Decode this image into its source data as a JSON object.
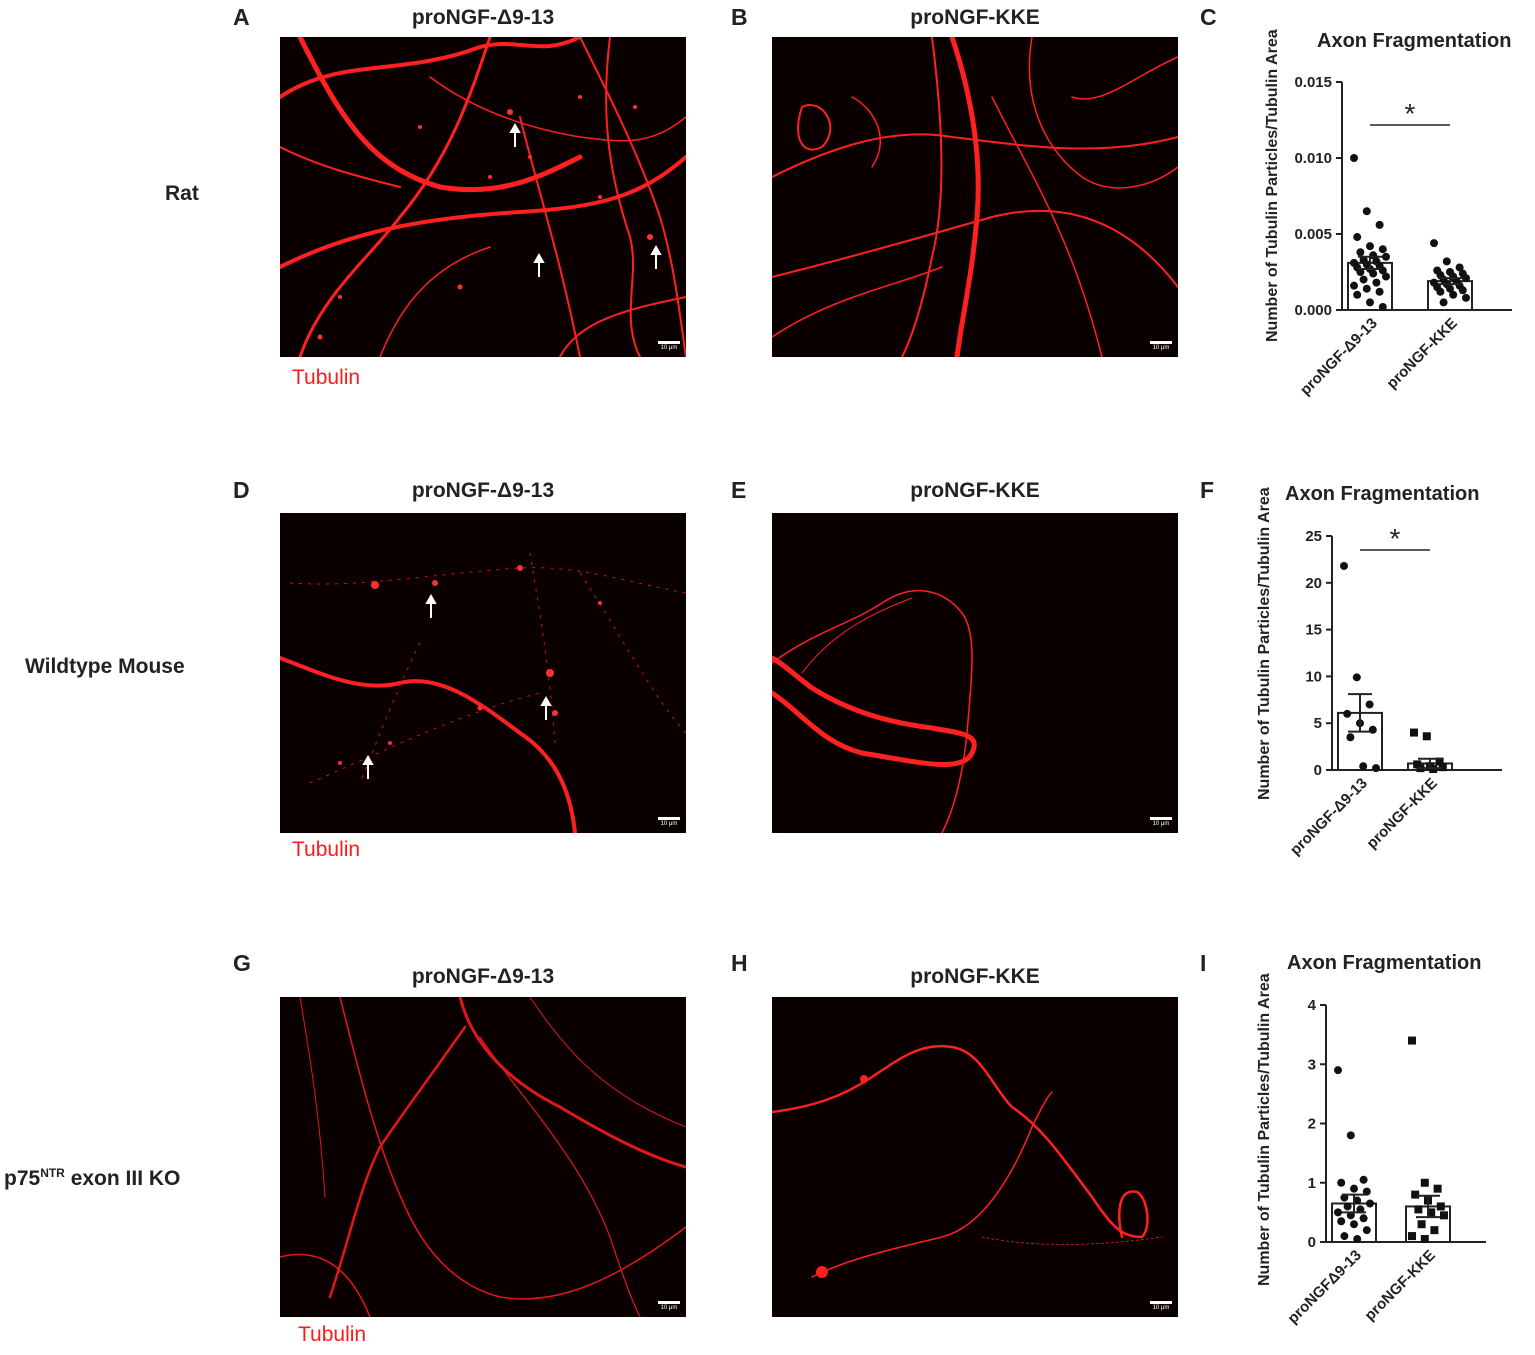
{
  "panels": {
    "A": {
      "letter": "A",
      "title": "proNGF-Δ9-13",
      "scale": "10 μm"
    },
    "B": {
      "letter": "B",
      "title": "proNGF-KKE",
      "scale": "10 μm"
    },
    "C": {
      "letter": "C"
    },
    "D": {
      "letter": "D",
      "title": "proNGF-Δ9-13",
      "scale": "10 μm"
    },
    "E": {
      "letter": "E",
      "title": "proNGF-KKE",
      "scale": "10 μm"
    },
    "F": {
      "letter": "F"
    },
    "G": {
      "letter": "G",
      "title": "proNGF-Δ9-13",
      "scale": "10 μm"
    },
    "H": {
      "letter": "H",
      "title": "proNGF-KKE",
      "scale": "10 μm"
    },
    "I": {
      "letter": "I"
    }
  },
  "rows": {
    "rat": "Rat",
    "wt": "Wildtype Mouse",
    "ko_prefix": "p75",
    "ko_sup": "NTR",
    "ko_suffix": " exon III KO"
  },
  "stain_label": "Tubulin",
  "colors": {
    "stain": "#ff1a1a",
    "background": "#0a0000"
  },
  "chart_data": [
    {
      "type": "bar",
      "panel": "C",
      "title": "Axon Fragmentation",
      "ylabel": "Number of Tubulin Particles/Tubulin Area",
      "categories": [
        "proNGF-Δ9-13",
        "proNGF-KKE"
      ],
      "values": [
        0.0031,
        0.0019
      ],
      "errors": [
        0.0004,
        0.0002
      ],
      "ylim": [
        0,
        0.015
      ],
      "yticks": [
        "0.000",
        "0.005",
        "0.010",
        "0.015"
      ],
      "significance": "*",
      "points": [
        [
          0.01,
          0.0065,
          0.0056,
          0.0048,
          0.0042,
          0.004,
          0.0038,
          0.0036,
          0.0035,
          0.0033,
          0.0032,
          0.0031,
          0.003,
          0.0029,
          0.0028,
          0.0027,
          0.0026,
          0.0025,
          0.0024,
          0.0022,
          0.002,
          0.0018,
          0.0016,
          0.0014,
          0.0012,
          0.001,
          0.0005,
          0.0002
        ],
        [
          0.0044,
          0.0032,
          0.0028,
          0.0026,
          0.0025,
          0.0024,
          0.0023,
          0.0022,
          0.0021,
          0.002,
          0.0019,
          0.0018,
          0.0017,
          0.0016,
          0.0015,
          0.0014,
          0.0013,
          0.0012,
          0.001,
          0.0008,
          0.0005
        ]
      ]
    },
    {
      "type": "bar",
      "panel": "F",
      "title": "Axon Fragmentation",
      "ylabel": "Number of Tubulin Particles/Tubulin Area",
      "categories": [
        "proNGF-Δ9-13",
        "proNGF-KKE"
      ],
      "values": [
        6.1,
        0.7
      ],
      "errors": [
        2.0,
        0.5
      ],
      "ylim": [
        0,
        25
      ],
      "yticks": [
        "0",
        "5",
        "10",
        "15",
        "20",
        "25"
      ],
      "significance": "*",
      "points": [
        [
          21.8,
          9.9,
          7.0,
          6.0,
          5.0,
          4.3,
          3.5,
          0.4,
          0.2
        ],
        [
          4.0,
          3.6,
          0.9,
          0.6,
          0.4,
          0.3,
          0.2,
          0.1
        ]
      ]
    },
    {
      "type": "bar",
      "panel": "I",
      "title": "Axon Fragmentation",
      "ylabel": "Number of Tubulin Particles/Tubulin Area",
      "categories": [
        "proNGFΔ9-13",
        "proNGF-KKE"
      ],
      "values": [
        0.65,
        0.6
      ],
      "errors": [
        0.15,
        0.18
      ],
      "ylim": [
        0,
        4
      ],
      "yticks": [
        "0",
        "1",
        "2",
        "3",
        "4"
      ],
      "significance": "",
      "points": [
        [
          2.9,
          1.8,
          1.05,
          1.0,
          0.9,
          0.85,
          0.75,
          0.7,
          0.65,
          0.6,
          0.55,
          0.5,
          0.45,
          0.4,
          0.35,
          0.3,
          0.2,
          0.1,
          0.05
        ],
        [
          3.4,
          1.0,
          0.9,
          0.8,
          0.7,
          0.6,
          0.55,
          0.5,
          0.45,
          0.3,
          0.2,
          0.1,
          0.05
        ]
      ]
    }
  ]
}
